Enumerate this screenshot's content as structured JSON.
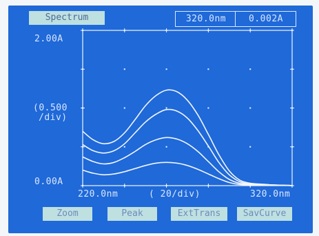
{
  "screen": {
    "title": "Spectrum",
    "readout_wavelength": "320.0nm",
    "readout_absorbance": "0.002A"
  },
  "axes": {
    "y_top_label": "2.00A",
    "y_scale_label_line1": "(0.500",
    "y_scale_label_line2": "/div)",
    "y_bottom_label": "0.00A",
    "x_left_label": "220.0nm",
    "x_scale_label": "(  20/div)",
    "x_right_label": "320.0nm"
  },
  "softkeys": [
    "Zoom",
    "Peak",
    "ExtTrans",
    "SavCurve"
  ],
  "colors": {
    "screen_bg": "#1f69d8",
    "trace": "#f2f6ff",
    "softkey_bg": "#bfe0e0"
  },
  "chart_data": {
    "type": "line",
    "xlim": [
      220,
      320
    ],
    "ylim": [
      0.0,
      2.0
    ],
    "xunit": "nm",
    "yunit": "A",
    "x": [
      220,
      225,
      230,
      235,
      240,
      245,
      250,
      255,
      260,
      265,
      270,
      275,
      280,
      285,
      290,
      295,
      300,
      305,
      310,
      315,
      320
    ],
    "series": [
      {
        "values": [
          0.7,
          0.59,
          0.54,
          0.57,
          0.68,
          0.85,
          1.03,
          1.16,
          1.23,
          1.21,
          1.1,
          0.91,
          0.66,
          0.4,
          0.19,
          0.07,
          0.03,
          0.02,
          0.01,
          0.005,
          0.002
        ]
      },
      {
        "values": [
          0.53,
          0.45,
          0.42,
          0.45,
          0.54,
          0.68,
          0.82,
          0.92,
          0.98,
          0.96,
          0.87,
          0.71,
          0.51,
          0.3,
          0.14,
          0.05,
          0.02,
          0.015,
          0.01,
          0.005,
          0.002
        ]
      },
      {
        "values": [
          0.37,
          0.31,
          0.28,
          0.3,
          0.36,
          0.44,
          0.53,
          0.59,
          0.62,
          0.6,
          0.54,
          0.44,
          0.31,
          0.18,
          0.08,
          0.03,
          0.015,
          0.01,
          0.008,
          0.005,
          0.002
        ]
      },
      {
        "values": [
          0.2,
          0.16,
          0.14,
          0.15,
          0.18,
          0.22,
          0.26,
          0.29,
          0.3,
          0.29,
          0.26,
          0.21,
          0.15,
          0.09,
          0.04,
          0.015,
          0.01,
          0.008,
          0.005,
          0.003,
          0.002
        ]
      }
    ]
  }
}
